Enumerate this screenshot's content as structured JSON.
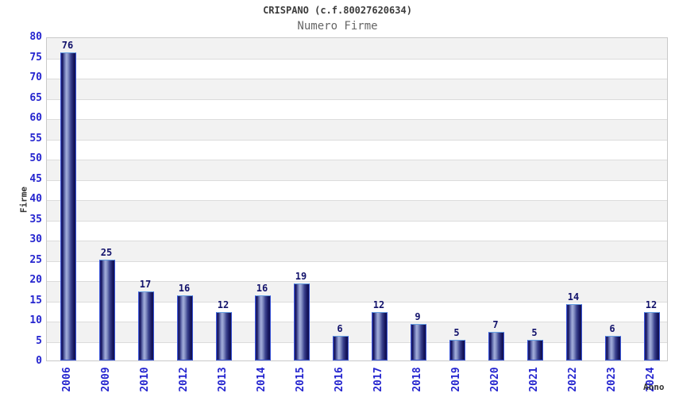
{
  "header": {
    "title": "CRISPANO (c.f.80027620634)",
    "subtitle": "Numero Firme"
  },
  "chart_data": {
    "type": "bar",
    "title": "CRISPANO (c.f.80027620634)",
    "subtitle": "Numero Firme",
    "xlabel": "Anno",
    "ylabel": "Firme",
    "categories": [
      "2006",
      "2009",
      "2010",
      "2012",
      "2013",
      "2014",
      "2015",
      "2016",
      "2017",
      "2018",
      "2019",
      "2020",
      "2021",
      "2022",
      "2023",
      "2024"
    ],
    "values": [
      76,
      25,
      17,
      16,
      12,
      16,
      19,
      6,
      12,
      9,
      5,
      7,
      5,
      14,
      6,
      12
    ],
    "ylim": [
      0,
      80
    ],
    "ytick_step": 5,
    "yticks": [
      0,
      5,
      10,
      15,
      20,
      25,
      30,
      35,
      40,
      45,
      50,
      55,
      60,
      65,
      70,
      75,
      80
    ],
    "grid": true,
    "legend": "none",
    "colors": {
      "bar_dark": "#14145e",
      "bar_light": "#a3aeda",
      "bar_border": "#3a55d8",
      "bar_border_top": "#66a0e2",
      "tick_label": "#2525cf",
      "value_label": "#12126b",
      "band_alt": "#f2f2f2",
      "gridline": "#dcdcdc",
      "plot_border": "#c9c9c9",
      "title_text": "#3c3c3c",
      "subtitle_text": "#666666",
      "axis_title_text": "#333333"
    }
  }
}
